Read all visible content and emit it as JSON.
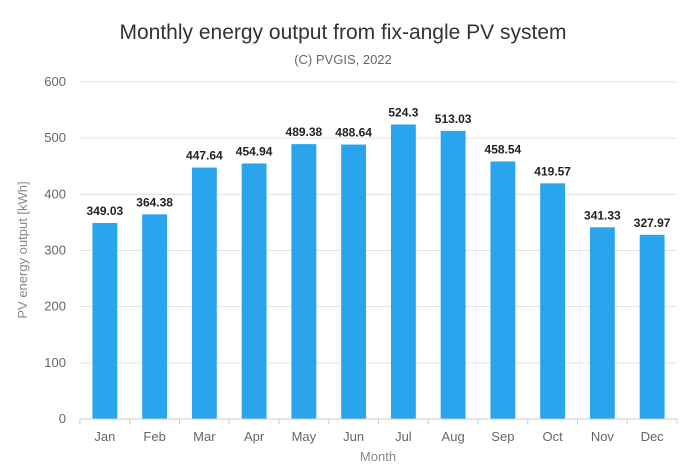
{
  "chart_data": {
    "type": "bar",
    "title": "Monthly energy output from fix-angle PV system",
    "subtitle": "(C) PVGIS, 2022",
    "xlabel": "Month",
    "ylabel": "PV energy output [kWh]",
    "categories": [
      "Jan",
      "Feb",
      "Mar",
      "Apr",
      "May",
      "Jun",
      "Jul",
      "Aug",
      "Sep",
      "Oct",
      "Nov",
      "Dec"
    ],
    "values": [
      349.03,
      364.38,
      447.64,
      454.94,
      489.38,
      488.64,
      524.3,
      513.03,
      458.54,
      419.57,
      341.33,
      327.97
    ],
    "data_labels": [
      "349.03",
      "364.38",
      "447.64",
      "454.94",
      "489.38",
      "488.64",
      "524.3",
      "513.03",
      "458.54",
      "419.57",
      "341.33",
      "327.97"
    ],
    "ylim": [
      0,
      600
    ],
    "yticks": [
      0,
      100,
      200,
      300,
      400,
      500,
      600
    ],
    "grid": true,
    "legend": "none",
    "bar_color": "#2aa5ed"
  }
}
